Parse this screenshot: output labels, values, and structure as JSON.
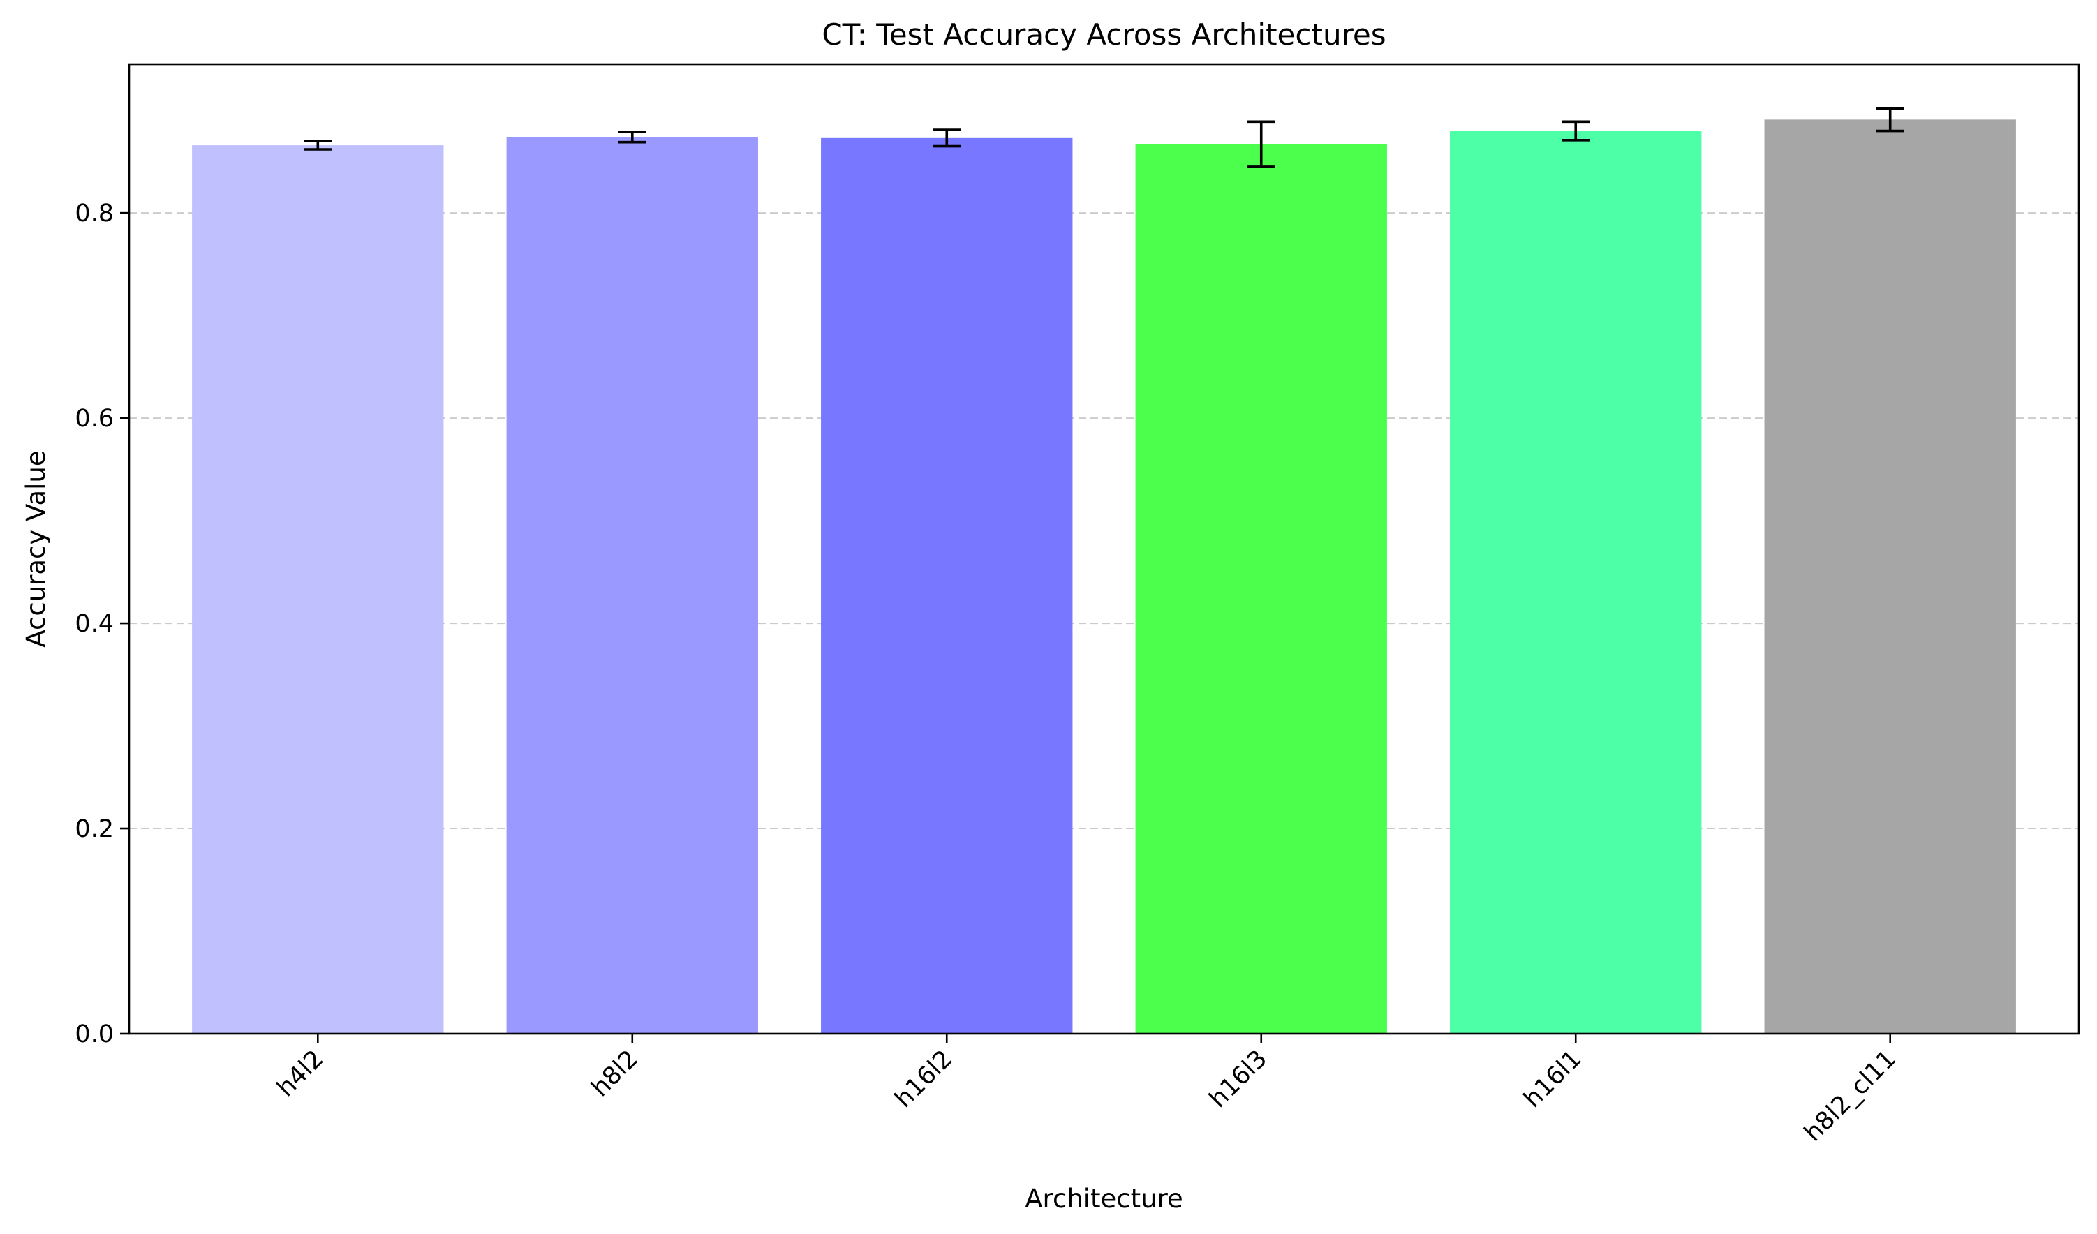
{
  "chart_data": {
    "type": "bar",
    "title": "CT: Test Accuracy Across Architectures",
    "xlabel": "Architecture",
    "ylabel": "Accuracy Value",
    "categories": [
      "h4l2",
      "h8l2",
      "h16l2",
      "h16l3",
      "h16l1",
      "h8l2_cl11"
    ],
    "values": [
      0.866,
      0.874,
      0.873,
      0.867,
      0.88,
      0.891
    ],
    "errors": [
      0.004,
      0.005,
      0.008,
      0.022,
      0.009,
      0.011
    ],
    "colors": [
      "#c0c0ff",
      "#9999ff",
      "#7777ff",
      "#4dff4d",
      "#4dffa6",
      "#a6a6a6"
    ],
    "ylim": [
      0,
      0.945
    ],
    "yticks": [
      0.0,
      0.2,
      0.4,
      0.6,
      0.8
    ],
    "ytick_labels": [
      "0.0",
      "0.2",
      "0.4",
      "0.6",
      "0.8"
    ],
    "grid": true,
    "grid_axis": "y",
    "legend": false
  }
}
